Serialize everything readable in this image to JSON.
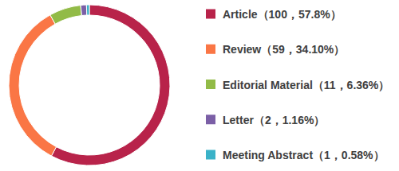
{
  "chart_data": {
    "type": "pie",
    "categories": [
      "Article（100，57.8%）",
      "Review（59，34.10%）",
      "Editorial Material（11，6.36%）",
      "Letter（2，1.16%）",
      "Meeting Abstract（1，0.58%）"
    ],
    "values": [
      100,
      59,
      11,
      2,
      1
    ],
    "colors": [
      "#b8234a",
      "#fa7645",
      "#92bb47",
      "#7b5fa6",
      "#3ab2c8"
    ],
    "legend": "right"
  }
}
